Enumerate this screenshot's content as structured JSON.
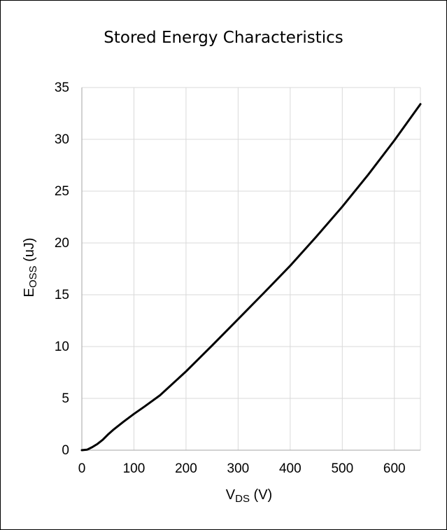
{
  "chart_data": {
    "type": "line",
    "title": "Stored Energy Characteristics",
    "xlabel": {
      "main": "V",
      "sub": "DS",
      "suffix": " (V)"
    },
    "ylabel": {
      "main": "E",
      "sub": "OSS",
      "suffix": " (uJ)"
    },
    "xlim": [
      0,
      650
    ],
    "ylim": [
      0,
      35
    ],
    "xticks": [
      0,
      100,
      200,
      300,
      400,
      500,
      600
    ],
    "yticks": [
      0,
      5,
      10,
      15,
      20,
      25,
      30,
      35
    ],
    "grid": true,
    "legend": "none",
    "series": [
      {
        "color": "#000000",
        "x": [
          0,
          10,
          20,
          30,
          40,
          50,
          60,
          80,
          100,
          120,
          150,
          200,
          250,
          300,
          350,
          400,
          450,
          500,
          550,
          600,
          650
        ],
        "y": [
          0,
          0.05,
          0.3,
          0.6,
          1.0,
          1.5,
          1.95,
          2.75,
          3.5,
          4.2,
          5.3,
          7.6,
          10.1,
          12.65,
          15.2,
          17.8,
          20.6,
          23.5,
          26.6,
          29.9,
          33.4
        ]
      }
    ]
  }
}
